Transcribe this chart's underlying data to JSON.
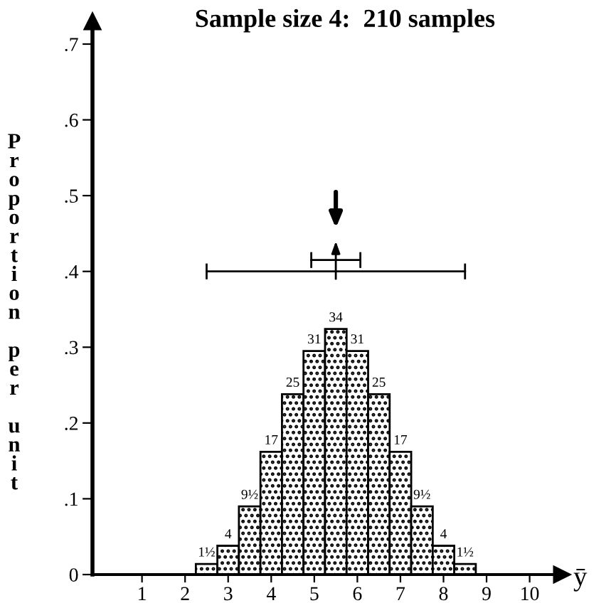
{
  "chart_data": {
    "type": "histogram",
    "title": "Sample size 4:  210 samples",
    "xlabel": "ȳ",
    "ylabel": "Proportion per unit",
    "bins": [
      2.25,
      2.75,
      3.25,
      3.75,
      4.25,
      4.75,
      5.25,
      5.75,
      6.25,
      6.75,
      7.25,
      7.75,
      8.25,
      8.75
    ],
    "values": [
      0.014,
      0.038,
      0.09,
      0.162,
      0.238,
      0.295,
      0.324,
      0.295,
      0.238,
      0.162,
      0.09,
      0.038,
      0.014
    ],
    "annotations": [
      {
        "text": "1½",
        "x": 2.5,
        "y": 0.014
      },
      {
        "text": "4",
        "x": 3.0,
        "y": 0.038
      },
      {
        "text": "9½",
        "x": 3.5,
        "y": 0.09
      },
      {
        "text": "17",
        "x": 4.0,
        "y": 0.162
      },
      {
        "text": "25",
        "x": 4.5,
        "y": 0.238
      },
      {
        "text": "31",
        "x": 5.0,
        "y": 0.295
      },
      {
        "text": "34",
        "x": 5.5,
        "y": 0.324
      },
      {
        "text": "31",
        "x": 6.0,
        "y": 0.295
      },
      {
        "text": "25",
        "x": 6.5,
        "y": 0.238
      },
      {
        "text": "17",
        "x": 7.0,
        "y": 0.162
      },
      {
        "text": "9½",
        "x": 7.5,
        "y": 0.09
      },
      {
        "text": "4",
        "x": 8.0,
        "y": 0.038
      },
      {
        "text": "1½",
        "x": 8.5,
        "y": 0.014
      }
    ],
    "color": "#000000",
    "series": [
      {
        "type": "line",
        "x": [
          2.5,
          8.5
        ],
        "values": [
          0.4,
          0.4
        ],
        "color": "#000000"
      },
      {
        "type": "line",
        "x": [
          4.93,
          6.07
        ],
        "values": [
          0.415,
          0.415
        ],
        "color": "#000000"
      }
    ],
    "xlim": [
      -0.15,
      10.75
    ],
    "ylim": [
      0,
      0.73
    ],
    "xticks": [
      1,
      2,
      3,
      4,
      5,
      6,
      7,
      8,
      9,
      10
    ],
    "yticks": [
      0,
      {
        "value": 0.1,
        "label": ".1"
      },
      {
        "value": 0.2,
        "label": ".2"
      },
      {
        "value": 0.3,
        "label": ".3"
      },
      {
        "value": 0.4,
        "label": ".4"
      },
      {
        "value": 0.5,
        "label": ".5"
      },
      {
        "value": 0.6,
        "label": ".6"
      },
      {
        "value": 0.7,
        "label": ".7"
      }
    ],
    "grid": false,
    "legend": false
  }
}
